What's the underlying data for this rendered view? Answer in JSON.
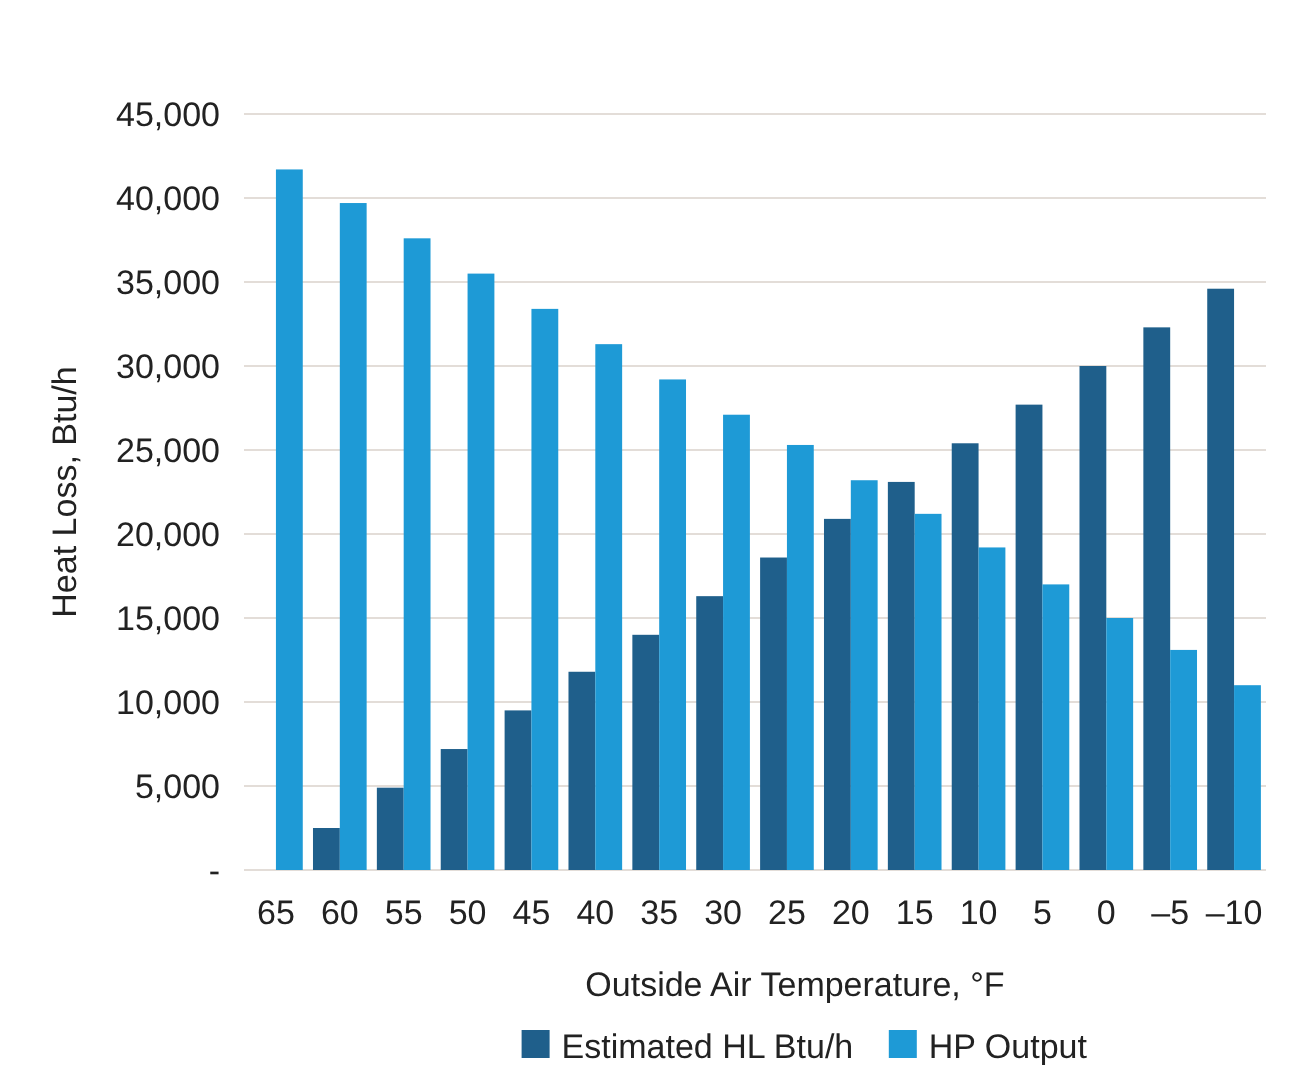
{
  "chart_data": {
    "type": "bar",
    "xlabel": "Outside Air Temperature, °F",
    "ylabel": "Heat Loss, Btu/h",
    "categories": [
      "65",
      "60",
      "55",
      "50",
      "45",
      "40",
      "35",
      "30",
      "25",
      "20",
      "15",
      "10",
      "5",
      "0",
      "–5",
      "–10"
    ],
    "series": [
      {
        "name": "Estimated HL Btu/h",
        "color": "#1f5f8b",
        "values": [
          0,
          2500,
          4900,
          7200,
          9500,
          11800,
          14000,
          16300,
          18600,
          20900,
          23100,
          25400,
          27700,
          30000,
          32300,
          34600
        ]
      },
      {
        "name": "HP Output",
        "color": "#1e9ad6",
        "values": [
          41700,
          39700,
          37600,
          35500,
          33400,
          31300,
          29200,
          27100,
          25300,
          23200,
          21200,
          19200,
          17000,
          15000,
          13100,
          11000
        ]
      }
    ],
    "ylim": [
      0,
      45000
    ],
    "yticks": [
      {
        "value": 0,
        "label": "-"
      },
      {
        "value": 5000,
        "label": "5,000"
      },
      {
        "value": 10000,
        "label": "10,000"
      },
      {
        "value": 15000,
        "label": "15,000"
      },
      {
        "value": 20000,
        "label": "20,000"
      },
      {
        "value": 25000,
        "label": "25,000"
      },
      {
        "value": 30000,
        "label": "30,000"
      },
      {
        "value": 35000,
        "label": "35,000"
      },
      {
        "value": 40000,
        "label": "40,000"
      },
      {
        "value": 45000,
        "label": "45,000"
      }
    ],
    "grid": "y",
    "legend": "bottom"
  }
}
